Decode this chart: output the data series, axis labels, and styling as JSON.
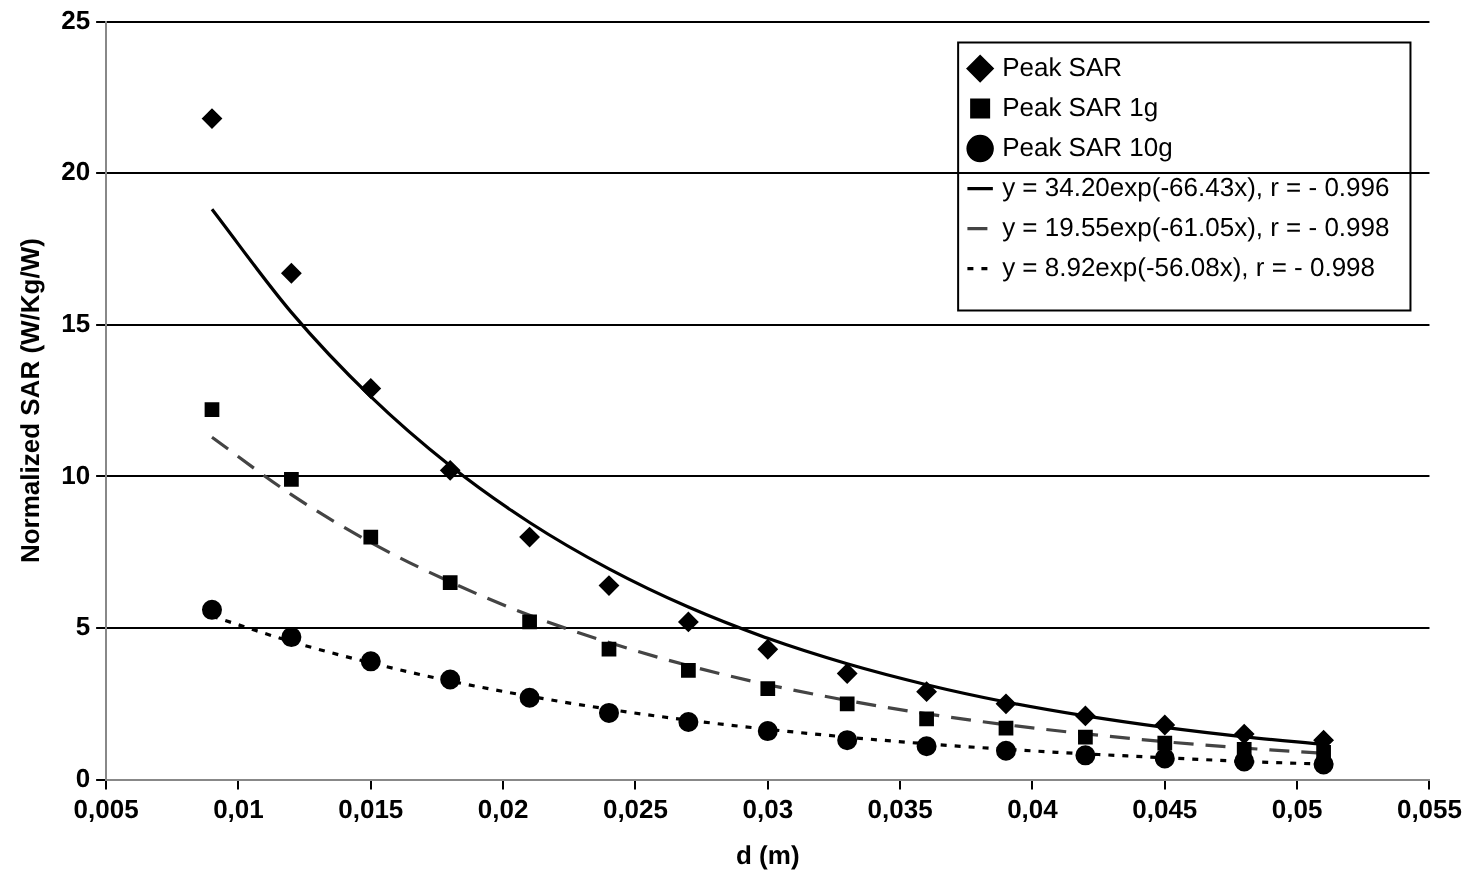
{
  "chart_data": {
    "type": "scatter",
    "xlabel": "d (m)",
    "ylabel": "Normalized SAR (W/Kg/W)",
    "xlim": [
      0.005,
      0.055
    ],
    "xticks": [
      {
        "value": 0.005,
        "label": "0,005"
      },
      {
        "value": 0.01,
        "label": "0,01"
      },
      {
        "value": 0.015,
        "label": "0,015"
      },
      {
        "value": 0.02,
        "label": "0,02"
      },
      {
        "value": 0.025,
        "label": "0,025"
      },
      {
        "value": 0.03,
        "label": "0,03"
      },
      {
        "value": 0.035,
        "label": "0,035"
      },
      {
        "value": 0.04,
        "label": "0,04"
      },
      {
        "value": 0.045,
        "label": "0,045"
      },
      {
        "value": 0.05,
        "label": "0,05"
      },
      {
        "value": 0.055,
        "label": "0,055"
      }
    ],
    "ylim": [
      0,
      25
    ],
    "yticks": [
      0,
      5,
      10,
      15,
      20,
      25
    ],
    "grid": "y",
    "legend": "top right",
    "x": [
      0.009,
      0.012,
      0.015,
      0.018,
      0.021,
      0.024,
      0.027,
      0.03,
      0.033,
      0.036,
      0.039,
      0.042,
      0.045,
      0.048,
      0.051
    ],
    "series": [
      {
        "name": "Peak SAR",
        "marker": "diamond",
        "color": "#000000",
        "values": [
          21.8,
          16.7,
          12.9,
          10.2,
          8.0,
          6.4,
          5.2,
          4.3,
          3.5,
          2.9,
          2.5,
          2.1,
          1.8,
          1.5,
          1.3
        ]
      },
      {
        "name": "Peak SAR 1g",
        "marker": "square",
        "color": "#000000",
        "values": [
          12.2,
          9.9,
          8.0,
          6.5,
          5.2,
          4.3,
          3.6,
          3.0,
          2.5,
          2.0,
          1.7,
          1.4,
          1.2,
          1.0,
          0.9
        ]
      },
      {
        "name": "Peak SAR 10g",
        "marker": "circle",
        "color": "#000000",
        "values": [
          5.6,
          4.7,
          3.9,
          3.3,
          2.7,
          2.2,
          1.9,
          1.6,
          1.3,
          1.1,
          0.95,
          0.8,
          0.7,
          0.6,
          0.5
        ]
      },
      {
        "name": "y = 34.20exp(-66.43x), r = - 0.996",
        "type": "line",
        "marker": "none",
        "line_style": "solid",
        "color": "#000000",
        "values": [
          18.81,
          15.41,
          12.63,
          10.35,
          8.48,
          6.95,
          5.69,
          4.66,
          3.82,
          3.13,
          2.56,
          2.1,
          1.72,
          1.41,
          1.16
        ]
      },
      {
        "name": "y = 19.55exp(-61.05x), r = - 0.998",
        "type": "line",
        "marker": "none",
        "line_style": "dashed",
        "color": "#444444",
        "values": [
          11.29,
          9.4,
          7.82,
          6.52,
          5.42,
          4.52,
          3.76,
          3.13,
          2.61,
          2.17,
          1.81,
          1.51,
          1.25,
          1.04,
          0.87
        ]
      },
      {
        "name": "y = 8.92exp(-56.08x), r = - 0.998",
        "type": "line",
        "marker": "none",
        "line_style": "dotted",
        "color": "#000000",
        "values": [
          5.39,
          4.55,
          3.85,
          3.25,
          2.75,
          2.32,
          1.96,
          1.66,
          1.4,
          1.18,
          1.0,
          0.85,
          0.72,
          0.6,
          0.51
        ]
      }
    ]
  }
}
